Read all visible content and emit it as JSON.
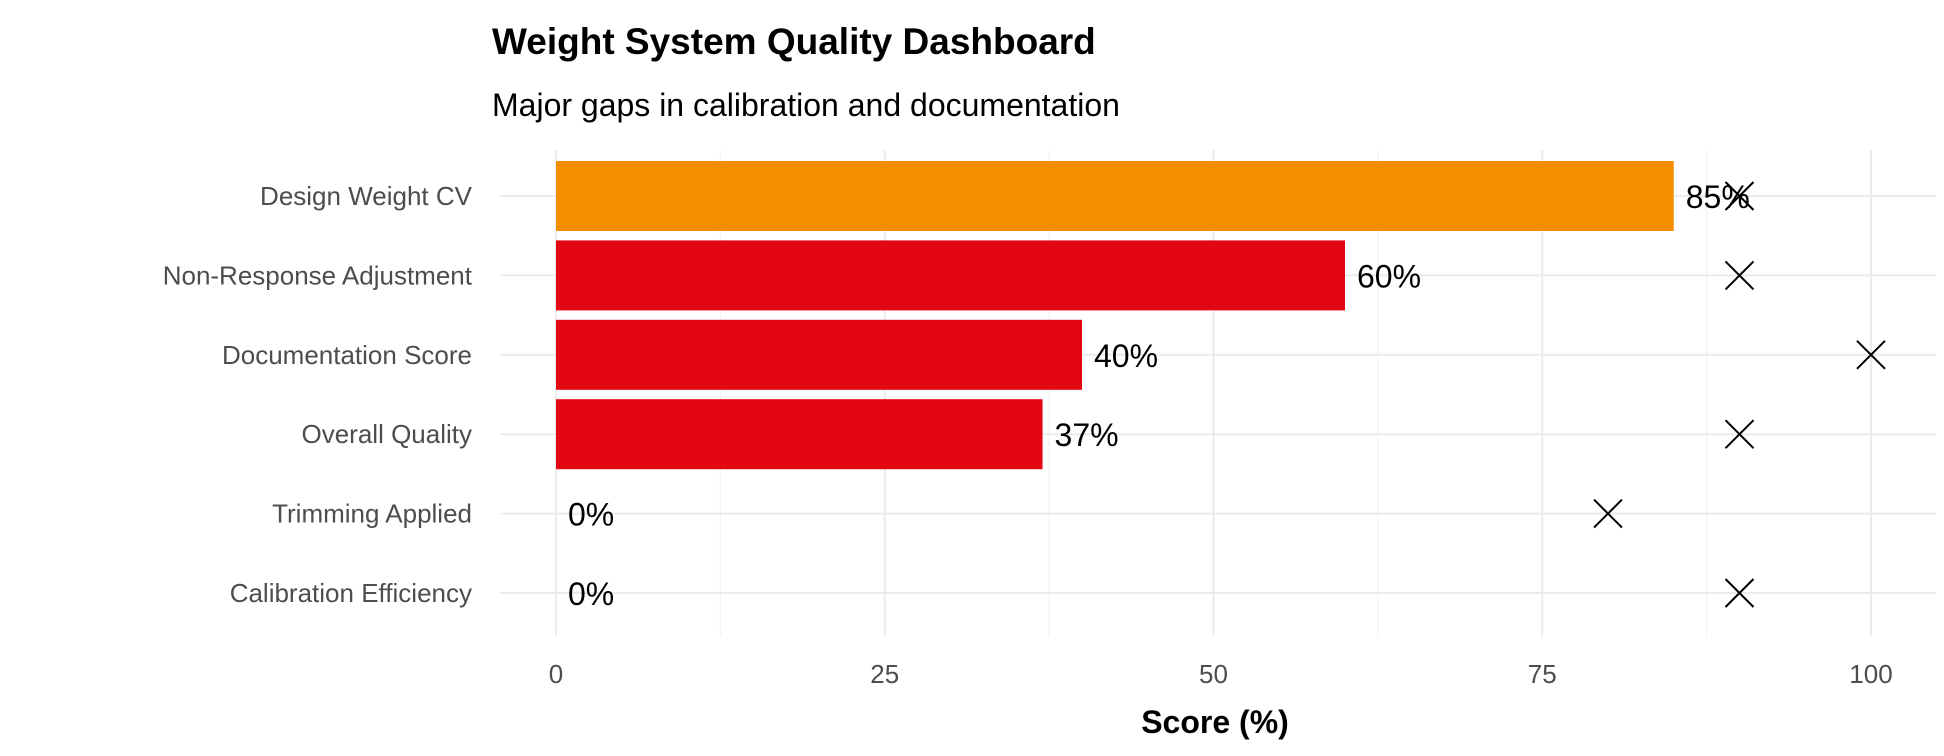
{
  "chart_data": {
    "type": "bar",
    "orientation": "horizontal",
    "title": "Weight System Quality Dashboard",
    "subtitle": "Major gaps in calibration and documentation",
    "xlabel": "Score (%)",
    "ylabel": "",
    "xlim": [
      0,
      100
    ],
    "xticks": [
      0,
      25,
      50,
      75,
      100
    ],
    "grid": true,
    "categories": [
      "Design Weight CV",
      "Non-Response Adjustment",
      "Documentation Score",
      "Overall Quality",
      "Trimming Applied",
      "Calibration Efficiency"
    ],
    "values": [
      85,
      60,
      40,
      37,
      0,
      0
    ],
    "value_labels": [
      "85%",
      "60%",
      "40%",
      "37%",
      "0%",
      "0%"
    ],
    "targets": [
      90,
      90,
      100,
      90,
      80,
      90
    ],
    "target_marker": "x",
    "bar_colors": [
      "#F28E00",
      "#E30613",
      "#E30613",
      "#E30613",
      "#E30613",
      "#E30613"
    ]
  }
}
